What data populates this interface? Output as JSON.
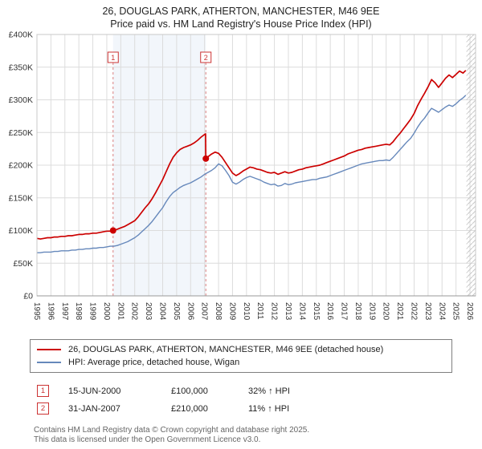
{
  "colors": {
    "red": "#cc0000",
    "blue": "#6688bb",
    "accent": "#cc3333",
    "grid": "#dcdcdc",
    "dash": "#d98080"
  },
  "header": {
    "title": "26, DOUGLAS PARK, ATHERTON, MANCHESTER, M46 9EE",
    "subtitle": "Price paid vs. HM Land Registry's House Price Index (HPI)"
  },
  "chart_data": {
    "type": "line",
    "y_unit": "GBP thousands",
    "x_min": 1995,
    "x_max": 2026.4,
    "y_max": 400,
    "x_ticks": [
      1995,
      1996,
      1997,
      1998,
      1999,
      2000,
      2001,
      2002,
      2003,
      2004,
      2005,
      2006,
      2007,
      2008,
      2009,
      2010,
      2011,
      2012,
      2013,
      2014,
      2015,
      2016,
      2017,
      2018,
      2019,
      2020,
      2021,
      2022,
      2023,
      2024,
      2025,
      2026
    ],
    "y_ticks": [
      0,
      50,
      100,
      150,
      200,
      250,
      300,
      350,
      400
    ],
    "y_tick_labels": [
      "£0",
      "£50K",
      "£100K",
      "£150K",
      "£200K",
      "£250K",
      "£300K",
      "£350K",
      "£400K"
    ],
    "grid": true,
    "legend_position": "bottom",
    "shaded_region": {
      "from": 2000.45,
      "to": 2007.09,
      "color": "rgba(130,165,220,0.10)"
    },
    "hatch_region": {
      "from": 2025.75,
      "to": 2026.4
    },
    "markers": [
      {
        "label": "1",
        "x": 2000.45,
        "y": 100
      },
      {
        "label": "2",
        "x": 2007.09,
        "y": 210
      }
    ],
    "series": [
      {
        "name": "26, DOUGLAS PARK, ATHERTON, MANCHESTER, M46 9EE (detached house)",
        "color": "#cc0000",
        "points": [
          [
            1995,
            88
          ],
          [
            1995.25,
            87
          ],
          [
            1995.5,
            88
          ],
          [
            1995.75,
            89
          ],
          [
            1996,
            89
          ],
          [
            1996.25,
            90
          ],
          [
            1996.5,
            90
          ],
          [
            1996.75,
            91
          ],
          [
            1997,
            91
          ],
          [
            1997.25,
            92
          ],
          [
            1997.5,
            92
          ],
          [
            1997.75,
            93
          ],
          [
            1998,
            94
          ],
          [
            1998.25,
            94
          ],
          [
            1998.5,
            95
          ],
          [
            1998.75,
            95
          ],
          [
            1999,
            96
          ],
          [
            1999.25,
            96
          ],
          [
            1999.5,
            97
          ],
          [
            1999.75,
            98
          ],
          [
            2000,
            99
          ],
          [
            2000.25,
            99
          ],
          [
            2000.45,
            100
          ],
          [
            2000.75,
            102
          ],
          [
            2001,
            104
          ],
          [
            2001.25,
            106
          ],
          [
            2001.5,
            109
          ],
          [
            2001.75,
            112
          ],
          [
            2002,
            115
          ],
          [
            2002.25,
            121
          ],
          [
            2002.5,
            128
          ],
          [
            2002.75,
            135
          ],
          [
            2003,
            141
          ],
          [
            2003.25,
            149
          ],
          [
            2003.5,
            158
          ],
          [
            2003.75,
            168
          ],
          [
            2004,
            178
          ],
          [
            2004.25,
            190
          ],
          [
            2004.5,
            202
          ],
          [
            2004.75,
            212
          ],
          [
            2005,
            219
          ],
          [
            2005.25,
            224
          ],
          [
            2005.5,
            227
          ],
          [
            2005.75,
            229
          ],
          [
            2006,
            231
          ],
          [
            2006.25,
            234
          ],
          [
            2006.5,
            238
          ],
          [
            2006.75,
            243
          ],
          [
            2007,
            247
          ],
          [
            2007.07,
            248
          ],
          [
            2007.09,
            210
          ],
          [
            2007.25,
            213
          ],
          [
            2007.5,
            217
          ],
          [
            2007.75,
            220
          ],
          [
            2008,
            218
          ],
          [
            2008.25,
            212
          ],
          [
            2008.5,
            204
          ],
          [
            2008.75,
            196
          ],
          [
            2009,
            188
          ],
          [
            2009.25,
            184
          ],
          [
            2009.5,
            187
          ],
          [
            2009.75,
            191
          ],
          [
            2010,
            194
          ],
          [
            2010.25,
            197
          ],
          [
            2010.5,
            196
          ],
          [
            2010.75,
            194
          ],
          [
            2011,
            193
          ],
          [
            2011.25,
            191
          ],
          [
            2011.5,
            189
          ],
          [
            2011.75,
            188
          ],
          [
            2012,
            189
          ],
          [
            2012.25,
            186
          ],
          [
            2012.5,
            188
          ],
          [
            2012.75,
            190
          ],
          [
            2013,
            188
          ],
          [
            2013.25,
            189
          ],
          [
            2013.5,
            191
          ],
          [
            2013.75,
            193
          ],
          [
            2014,
            194
          ],
          [
            2014.25,
            196
          ],
          [
            2014.5,
            197
          ],
          [
            2014.75,
            198
          ],
          [
            2015,
            199
          ],
          [
            2015.25,
            200
          ],
          [
            2015.5,
            202
          ],
          [
            2015.75,
            204
          ],
          [
            2016,
            206
          ],
          [
            2016.25,
            208
          ],
          [
            2016.5,
            210
          ],
          [
            2016.75,
            212
          ],
          [
            2017,
            214
          ],
          [
            2017.25,
            217
          ],
          [
            2017.5,
            219
          ],
          [
            2017.75,
            221
          ],
          [
            2018,
            223
          ],
          [
            2018.25,
            224
          ],
          [
            2018.5,
            226
          ],
          [
            2018.75,
            227
          ],
          [
            2019,
            228
          ],
          [
            2019.25,
            229
          ],
          [
            2019.5,
            230
          ],
          [
            2019.75,
            231
          ],
          [
            2020,
            232
          ],
          [
            2020.25,
            231
          ],
          [
            2020.5,
            236
          ],
          [
            2020.75,
            243
          ],
          [
            2021,
            249
          ],
          [
            2021.25,
            256
          ],
          [
            2021.5,
            263
          ],
          [
            2021.75,
            270
          ],
          [
            2022,
            279
          ],
          [
            2022.25,
            291
          ],
          [
            2022.5,
            301
          ],
          [
            2022.75,
            310
          ],
          [
            2023,
            320
          ],
          [
            2023.25,
            331
          ],
          [
            2023.5,
            326
          ],
          [
            2023.75,
            319
          ],
          [
            2024,
            326
          ],
          [
            2024.25,
            333
          ],
          [
            2024.5,
            338
          ],
          [
            2024.75,
            334
          ],
          [
            2025,
            339
          ],
          [
            2025.25,
            344
          ],
          [
            2025.5,
            341
          ],
          [
            2025.7,
            345
          ]
        ]
      },
      {
        "name": "HPI: Average price, detached house, Wigan",
        "color": "#6688bb",
        "points": [
          [
            1995,
            66
          ],
          [
            1995.25,
            66
          ],
          [
            1995.5,
            67
          ],
          [
            1995.75,
            67
          ],
          [
            1996,
            67
          ],
          [
            1996.25,
            68
          ],
          [
            1996.5,
            68
          ],
          [
            1996.75,
            69
          ],
          [
            1997,
            69
          ],
          [
            1997.25,
            69
          ],
          [
            1997.5,
            70
          ],
          [
            1997.75,
            70
          ],
          [
            1998,
            71
          ],
          [
            1998.25,
            71
          ],
          [
            1998.5,
            72
          ],
          [
            1998.75,
            72
          ],
          [
            1999,
            73
          ],
          [
            1999.25,
            73
          ],
          [
            1999.5,
            74
          ],
          [
            1999.75,
            74
          ],
          [
            2000,
            75
          ],
          [
            2000.25,
            76
          ],
          [
            2000.5,
            76
          ],
          [
            2000.75,
            77
          ],
          [
            2001,
            79
          ],
          [
            2001.25,
            81
          ],
          [
            2001.5,
            83
          ],
          [
            2001.75,
            86
          ],
          [
            2002,
            89
          ],
          [
            2002.25,
            93
          ],
          [
            2002.5,
            98
          ],
          [
            2002.75,
            103
          ],
          [
            2003,
            108
          ],
          [
            2003.25,
            114
          ],
          [
            2003.5,
            121
          ],
          [
            2003.75,
            128
          ],
          [
            2004,
            135
          ],
          [
            2004.25,
            144
          ],
          [
            2004.5,
            152
          ],
          [
            2004.75,
            158
          ],
          [
            2005,
            162
          ],
          [
            2005.25,
            166
          ],
          [
            2005.5,
            169
          ],
          [
            2005.75,
            171
          ],
          [
            2006,
            173
          ],
          [
            2006.25,
            176
          ],
          [
            2006.5,
            179
          ],
          [
            2006.75,
            182
          ],
          [
            2007,
            186
          ],
          [
            2007.25,
            189
          ],
          [
            2007.5,
            192
          ],
          [
            2007.75,
            196
          ],
          [
            2008,
            202
          ],
          [
            2008.25,
            199
          ],
          [
            2008.5,
            192
          ],
          [
            2008.75,
            184
          ],
          [
            2009,
            174
          ],
          [
            2009.25,
            171
          ],
          [
            2009.5,
            174
          ],
          [
            2009.75,
            178
          ],
          [
            2010,
            181
          ],
          [
            2010.25,
            183
          ],
          [
            2010.5,
            181
          ],
          [
            2010.75,
            179
          ],
          [
            2011,
            177
          ],
          [
            2011.25,
            174
          ],
          [
            2011.5,
            172
          ],
          [
            2011.75,
            170
          ],
          [
            2012,
            171
          ],
          [
            2012.25,
            168
          ],
          [
            2012.5,
            169
          ],
          [
            2012.75,
            172
          ],
          [
            2013,
            170
          ],
          [
            2013.25,
            171
          ],
          [
            2013.5,
            173
          ],
          [
            2013.75,
            174
          ],
          [
            2014,
            175
          ],
          [
            2014.25,
            176
          ],
          [
            2014.5,
            177
          ],
          [
            2014.75,
            178
          ],
          [
            2015,
            178
          ],
          [
            2015.25,
            180
          ],
          [
            2015.5,
            181
          ],
          [
            2015.75,
            182
          ],
          [
            2016,
            184
          ],
          [
            2016.25,
            186
          ],
          [
            2016.5,
            188
          ],
          [
            2016.75,
            190
          ],
          [
            2017,
            192
          ],
          [
            2017.25,
            194
          ],
          [
            2017.5,
            196
          ],
          [
            2017.75,
            198
          ],
          [
            2018,
            200
          ],
          [
            2018.25,
            202
          ],
          [
            2018.5,
            203
          ],
          [
            2018.75,
            204
          ],
          [
            2019,
            205
          ],
          [
            2019.25,
            206
          ],
          [
            2019.5,
            207
          ],
          [
            2019.75,
            207
          ],
          [
            2020,
            208
          ],
          [
            2020.25,
            207
          ],
          [
            2020.5,
            212
          ],
          [
            2020.75,
            218
          ],
          [
            2021,
            224
          ],
          [
            2021.25,
            230
          ],
          [
            2021.5,
            236
          ],
          [
            2021.75,
            241
          ],
          [
            2022,
            249
          ],
          [
            2022.25,
            258
          ],
          [
            2022.5,
            266
          ],
          [
            2022.75,
            272
          ],
          [
            2023,
            280
          ],
          [
            2023.25,
            287
          ],
          [
            2023.5,
            284
          ],
          [
            2023.75,
            281
          ],
          [
            2024,
            285
          ],
          [
            2024.25,
            289
          ],
          [
            2024.5,
            292
          ],
          [
            2024.75,
            290
          ],
          [
            2025,
            294
          ],
          [
            2025.25,
            299
          ],
          [
            2025.5,
            303
          ],
          [
            2025.7,
            307
          ]
        ]
      }
    ]
  },
  "transactions": [
    {
      "num": "1",
      "date": "15-JUN-2000",
      "price": "£100,000",
      "hpi": "32% ↑ HPI"
    },
    {
      "num": "2",
      "date": "31-JAN-2007",
      "price": "£210,000",
      "hpi": "11% ↑ HPI"
    }
  ],
  "footer": {
    "line1": "Contains HM Land Registry data © Crown copyright and database right 2025.",
    "line2": "This data is licensed under the Open Government Licence v3.0."
  }
}
